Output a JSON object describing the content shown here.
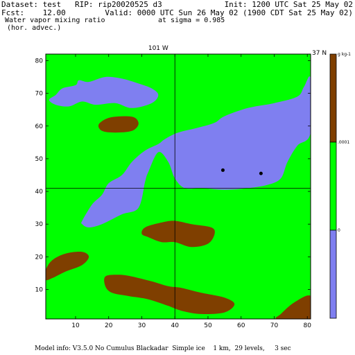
{
  "header": {
    "dataset": "Dataset: test   RIP: rip20020525 d3",
    "init": "Init: 1200 UTC Sat 25 May 02",
    "fcst": "Fcst:    12.00",
    "valid": "Valid: 0000 UTC Sun 26 May 02 (1900 CDT Sat 25 May 02)",
    "field": "Water vapor mixing ratio",
    "sigma": "at sigma = 0.985",
    "advec": "(hor. advec.)"
  },
  "footer": "Model info: V3.5.0 No Cumulus Blackadar  Simple ice    1 km,  29 levels,     3 sec",
  "colors": {
    "low": "#7f7ff0",
    "mid": "#00ff00",
    "high": "#7f3f00",
    "frame": "#000000"
  },
  "chart_data": {
    "type": "heatmap",
    "title": "Water vapor mixing ratio",
    "xlim": [
      1,
      81
    ],
    "ylim": [
      1,
      82
    ],
    "xticks": [
      "10",
      "20",
      "30",
      "40",
      "50",
      "60",
      "70",
      "80"
    ],
    "yticks": [
      "10",
      "20",
      "30",
      "40",
      "50",
      "60",
      "70",
      "80"
    ],
    "cross_section": {
      "vertical_label": "101 W",
      "horizontal_label": "37 N",
      "vertical_x": 40,
      "horizontal_y": 41
    },
    "colorbar": {
      "unit": "g kg-1",
      "levels": [
        {
          "label": "0",
          "value": 0
        },
        {
          "label": ".0001",
          "value": 0.0001
        }
      ]
    },
    "regions": [
      {
        "name": "green",
        "color_key": "mid",
        "points": [
          [
            1,
            1
          ],
          [
            81,
            1
          ],
          [
            81,
            82
          ],
          [
            1,
            82
          ]
        ]
      },
      {
        "name": "blue-nw",
        "color_key": "low",
        "points": [
          [
            4,
            69.5
          ],
          [
            6,
            71.5
          ],
          [
            10,
            72.5
          ],
          [
            11,
            74
          ],
          [
            14,
            73.5
          ],
          [
            19,
            75
          ],
          [
            24,
            74.5
          ],
          [
            29,
            73
          ],
          [
            33,
            71.5
          ],
          [
            35,
            69.5
          ],
          [
            33,
            67
          ],
          [
            27,
            65.5
          ],
          [
            22,
            67
          ],
          [
            16,
            66.5
          ],
          [
            12,
            67.5
          ],
          [
            8,
            66
          ],
          [
            4,
            66.5
          ],
          [
            2,
            68
          ]
        ]
      },
      {
        "name": "blue-main",
        "color_key": "low",
        "points": [
          [
            12,
            31
          ],
          [
            15,
            36
          ],
          [
            18,
            39
          ],
          [
            20,
            42.5
          ],
          [
            24,
            45
          ],
          [
            27,
            49
          ],
          [
            31,
            52.5
          ],
          [
            35,
            54.5
          ],
          [
            37,
            56
          ],
          [
            41,
            58
          ],
          [
            47,
            59.5
          ],
          [
            52,
            61
          ],
          [
            55,
            63
          ],
          [
            62,
            65.5
          ],
          [
            70,
            67
          ],
          [
            77,
            69
          ],
          [
            79,
            72
          ],
          [
            81,
            74.5
          ],
          [
            81,
            58
          ],
          [
            77,
            54
          ],
          [
            74,
            49
          ],
          [
            72,
            44
          ],
          [
            68,
            42
          ],
          [
            62,
            41
          ],
          [
            55,
            40.5
          ],
          [
            48,
            41
          ],
          [
            43,
            41
          ],
          [
            40,
            44
          ],
          [
            38,
            49
          ],
          [
            35,
            52
          ],
          [
            32,
            46
          ],
          [
            31,
            43
          ],
          [
            29,
            35
          ],
          [
            24,
            33
          ],
          [
            18,
            30
          ],
          [
            14,
            29
          ],
          [
            12,
            30
          ]
        ]
      },
      {
        "name": "brown-nw",
        "color_key": "high",
        "points": [
          [
            17,
            60.5
          ],
          [
            20,
            62.5
          ],
          [
            25,
            63
          ],
          [
            28,
            62.5
          ],
          [
            29,
            60.5
          ],
          [
            27,
            58.5
          ],
          [
            22,
            58
          ],
          [
            18,
            58.5
          ]
        ]
      },
      {
        "name": "brown-center",
        "color_key": "high",
        "points": [
          [
            31,
            29
          ],
          [
            36,
            30.5
          ],
          [
            40,
            31
          ],
          [
            45,
            30
          ],
          [
            51,
            29
          ],
          [
            52,
            27
          ],
          [
            50,
            24
          ],
          [
            45,
            23
          ],
          [
            40,
            24.5
          ],
          [
            36,
            24.5
          ],
          [
            32,
            26
          ],
          [
            30,
            27
          ]
        ]
      },
      {
        "name": "brown-w",
        "color_key": "high",
        "points": [
          [
            1,
            16
          ],
          [
            3,
            19
          ],
          [
            7,
            21
          ],
          [
            12,
            21.5
          ],
          [
            14,
            20
          ],
          [
            12,
            17.5
          ],
          [
            7,
            15.5
          ],
          [
            3,
            13.5
          ],
          [
            1,
            13
          ]
        ]
      },
      {
        "name": "brown-south",
        "color_key": "high",
        "points": [
          [
            19,
            14
          ],
          [
            23,
            14.5
          ],
          [
            27,
            14
          ],
          [
            33,
            12.5
          ],
          [
            38,
            11
          ],
          [
            42,
            10.5
          ],
          [
            48,
            9
          ],
          [
            55,
            7.5
          ],
          [
            58,
            5.5
          ],
          [
            55,
            3
          ],
          [
            48,
            2.5
          ],
          [
            42,
            3.5
          ],
          [
            38,
            5
          ],
          [
            32,
            7
          ],
          [
            26,
            8
          ],
          [
            21,
            9
          ],
          [
            19,
            11
          ]
        ]
      },
      {
        "name": "brown-se",
        "color_key": "high",
        "points": [
          [
            71,
            1
          ],
          [
            72,
            2.5
          ],
          [
            76,
            6
          ],
          [
            81,
            8
          ],
          [
            81,
            1
          ]
        ]
      }
    ],
    "markers": [
      {
        "x": 54.5,
        "y": 46.5
      },
      {
        "x": 66,
        "y": 45.5
      }
    ]
  }
}
